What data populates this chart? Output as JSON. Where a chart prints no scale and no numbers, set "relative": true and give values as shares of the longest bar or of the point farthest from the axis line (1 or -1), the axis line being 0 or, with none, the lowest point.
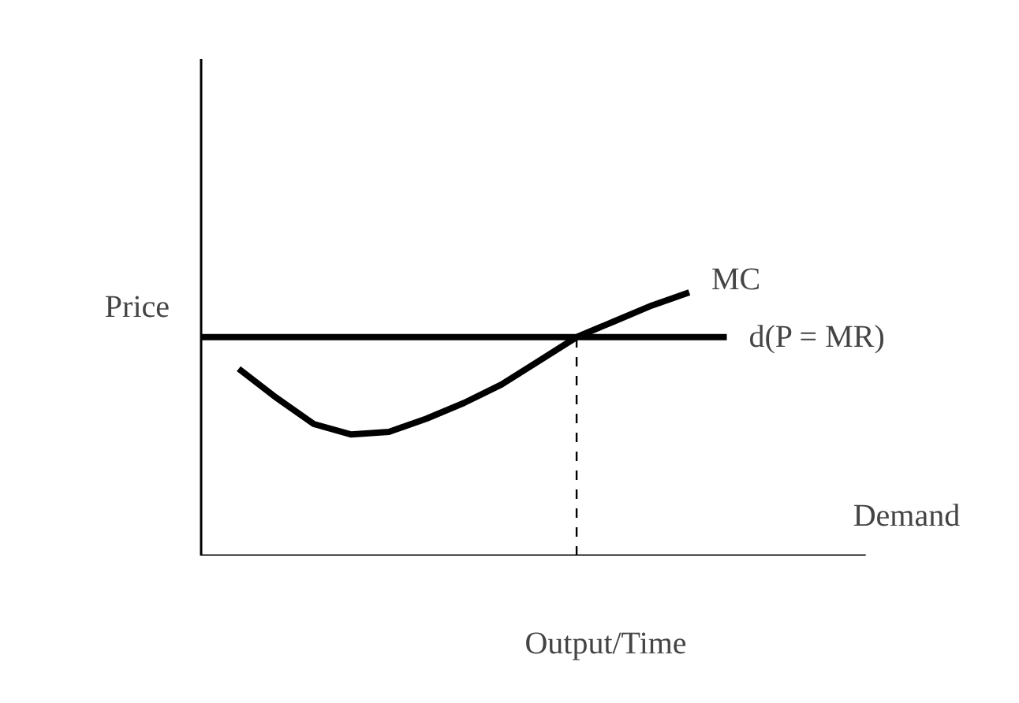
{
  "chart_data": {
    "type": "line",
    "relative": true,
    "xlabel": "Output/Time",
    "ylabel": "Price",
    "categories": [
      null,
      null,
      null,
      null,
      null,
      null,
      null,
      null,
      null,
      null,
      null,
      null,
      null,
      null,
      null,
      null,
      null,
      null
    ],
    "series": [
      {
        "name": "MC",
        "color": "#000000",
        "values": [
          null,
          0.71,
          0.6,
          0.5,
          0.46,
          0.47,
          0.52,
          0.58,
          0.65,
          0.74,
          0.83,
          0.89,
          0.95,
          1.0,
          null,
          null,
          null,
          null
        ]
      },
      {
        "name": "d(P = MR)",
        "color": "#000000",
        "values": [
          0.83,
          0.83,
          0.83,
          0.83,
          0.83,
          0.83,
          0.83,
          0.83,
          0.83,
          0.83,
          0.83,
          0.83,
          0.83,
          0.83,
          0.83,
          null,
          null,
          null
        ]
      }
    ],
    "annotations": [
      "Demand"
    ]
  }
}
